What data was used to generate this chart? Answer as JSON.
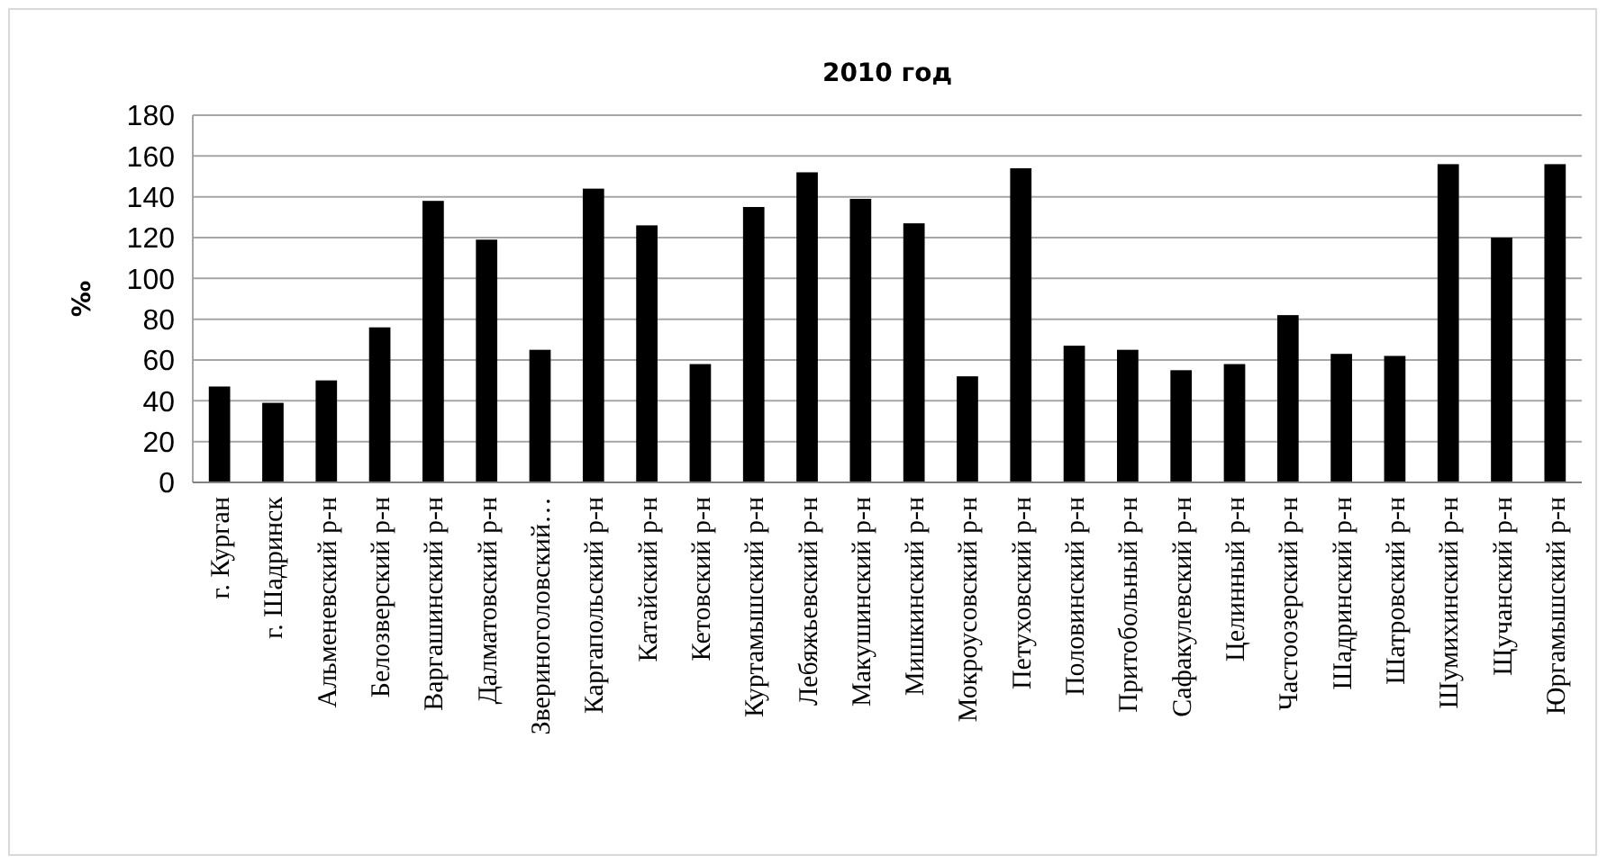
{
  "chart_data": {
    "type": "bar",
    "title": "2010 год",
    "ylabel": "‰",
    "categories": [
      "г. Курган",
      "г. Шадринск",
      "Альменевский р-н",
      "Белозверский р-н",
      "Варгашинский  р-н",
      "Далматовский р-н",
      "Звериноголовский…",
      "Каргапольский р-н",
      "Катайский р-н",
      "Кетовский р-н",
      "Куртамышский р-н",
      "Лебяжьевский р-н",
      "Макушинский  р-н",
      "Мишкинский  р-н",
      "Мокроусовский р-н",
      "Петуховский р-н",
      "Половинский  р-н",
      "Притобольный р-н",
      "Сафакулевский р-н",
      "Целинный р-н",
      "Частоозерский р-н",
      "Шадринский  р-н",
      "Шатровский р-н",
      "Шумихинский  р-н",
      "Щучанский р-н",
      "Юргамышский р-н"
    ],
    "values": [
      47,
      39,
      50,
      76,
      138,
      119,
      65,
      144,
      126,
      58,
      135,
      152,
      139,
      127,
      52,
      154,
      67,
      65,
      55,
      58,
      82,
      63,
      62,
      156,
      120,
      156
    ],
    "color": "#000000",
    "ylim": [
      0,
      180
    ],
    "yticks": [
      0,
      20,
      40,
      60,
      80,
      100,
      120,
      140,
      160,
      180
    ],
    "grid": "y"
  }
}
